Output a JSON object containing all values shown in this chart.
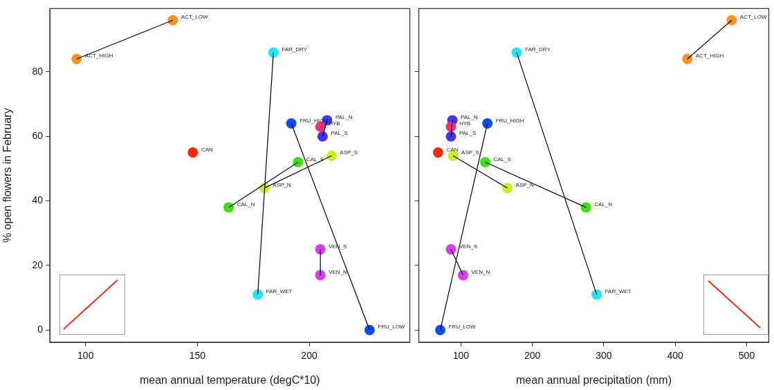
{
  "chart_data": [
    {
      "type": "scatter",
      "xlabel": "mean annual temperature (degC*10)",
      "ylabel": "% open flowers in February",
      "xlim": [
        84,
        245
      ],
      "xticks": [
        100,
        150,
        200
      ],
      "ylim": [
        -3.8,
        99.6
      ],
      "yticks": [
        0,
        20,
        40,
        60,
        80
      ],
      "grid": false,
      "legend": false,
      "series": [
        {
          "type": "line",
          "color": "#000000",
          "marker": "none",
          "x": [
            96,
            139
          ],
          "values": [
            84,
            96
          ]
        },
        {
          "type": "line",
          "color": "#000000",
          "marker": "none",
          "x": [
            184,
            177
          ],
          "values": [
            86,
            11
          ]
        },
        {
          "type": "line",
          "color": "#000000",
          "marker": "none",
          "x": [
            192,
            227
          ],
          "values": [
            64,
            0
          ]
        },
        {
          "type": "line",
          "color": "#000000",
          "marker": "none",
          "x": [
            208,
            206
          ],
          "values": [
            65,
            60
          ]
        },
        {
          "type": "line",
          "color": "#000000",
          "marker": "none",
          "x": [
            195,
            164
          ],
          "values": [
            52,
            38
          ]
        },
        {
          "type": "line",
          "color": "#000000",
          "marker": "none",
          "x": [
            210,
            180
          ],
          "values": [
            54,
            44
          ]
        },
        {
          "type": "line",
          "color": "#000000",
          "marker": "none",
          "x": [
            205,
            205
          ],
          "values": [
            25,
            17
          ]
        },
        {
          "marker": "circle",
          "x": [
            139,
            96,
            184,
            177,
            192,
            227,
            208,
            206,
            205,
            148,
            195,
            164,
            210,
            180,
            205,
            205
          ],
          "values": [
            96,
            84,
            86,
            11,
            64,
            0,
            65,
            60,
            63,
            55,
            52,
            38,
            54,
            44,
            25,
            17
          ],
          "colors": [
            "#f7931e",
            "#f7931e",
            "#22e6f2",
            "#22e6f2",
            "#0a4cf5",
            "#0a4cf5",
            "#4433f0",
            "#4433f0",
            "#f0307a",
            "#f5280a",
            "#40e010",
            "#40e010",
            "#c8f01e",
            "#c8f01e",
            "#d93cf0",
            "#d93cf0"
          ],
          "value_labels": [
            "ACT_LOW",
            "ACT_HIGH",
            "FAR_DRY",
            "FAR_WET",
            "FRU_HIGH",
            "FRU_LOW",
            "PAL_N",
            "PAL_S",
            "HYB",
            "CAN",
            "CAL_S",
            "CAL_N",
            "ASP_S",
            "ASP_N",
            "VEN_S",
            "VEN_N"
          ]
        }
      ]
    },
    {
      "type": "scatter",
      "xlabel": "mean annual precipitation (mm)",
      "xlim": [
        41,
        531
      ],
      "xticks": [
        100,
        200,
        300,
        400,
        500
      ],
      "ylim": [
        -3.8,
        99.6
      ],
      "yticks": [
        0,
        20,
        40,
        60,
        80
      ],
      "tick_labels": "x",
      "grid": false,
      "legend": false,
      "series": [
        {
          "type": "line",
          "color": "#000000",
          "marker": "none",
          "x": [
            417,
            479
          ],
          "values": [
            84,
            96
          ]
        },
        {
          "type": "line",
          "color": "#000000",
          "marker": "none",
          "x": [
            178,
            290
          ],
          "values": [
            86,
            11
          ]
        },
        {
          "type": "line",
          "color": "#000000",
          "marker": "none",
          "x": [
            137,
            71
          ],
          "values": [
            64,
            0
          ]
        },
        {
          "type": "line",
          "color": "#000000",
          "marker": "none",
          "x": [
            88,
            86
          ],
          "values": [
            65,
            60
          ]
        },
        {
          "type": "line",
          "color": "#000000",
          "marker": "none",
          "x": [
            134,
            275
          ],
          "values": [
            52,
            38
          ]
        },
        {
          "type": "line",
          "color": "#000000",
          "marker": "none",
          "x": [
            89,
            165
          ],
          "values": [
            54,
            44
          ]
        },
        {
          "type": "line",
          "color": "#000000",
          "marker": "none",
          "x": [
            86,
            103
          ],
          "values": [
            25,
            17
          ]
        },
        {
          "marker": "circle",
          "x": [
            479,
            417,
            178,
            290,
            137,
            71,
            88,
            86,
            86,
            68,
            134,
            275,
            89,
            165,
            86,
            103
          ],
          "values": [
            96,
            84,
            86,
            11,
            64,
            0,
            65,
            60,
            63,
            55,
            52,
            38,
            54,
            44,
            25,
            17
          ],
          "colors": [
            "#f7931e",
            "#f7931e",
            "#22e6f2",
            "#22e6f2",
            "#0a4cf5",
            "#0a4cf5",
            "#4433f0",
            "#4433f0",
            "#f0307a",
            "#f5280a",
            "#40e010",
            "#40e010",
            "#c8f01e",
            "#c8f01e",
            "#d93cf0",
            "#d93cf0"
          ],
          "value_labels": [
            "ACT_LOW",
            "ACT_HIGH",
            "FAR_DRY",
            "FAR_WET",
            "FRU_HIGH",
            "FRU_LOW",
            "PAL_N",
            "PAL_S",
            "HYB",
            "CAN",
            "CAL_S",
            "CAL_N",
            "ASP_S",
            "ASP_N",
            "VEN_S",
            "VEN_N"
          ]
        }
      ]
    }
  ]
}
